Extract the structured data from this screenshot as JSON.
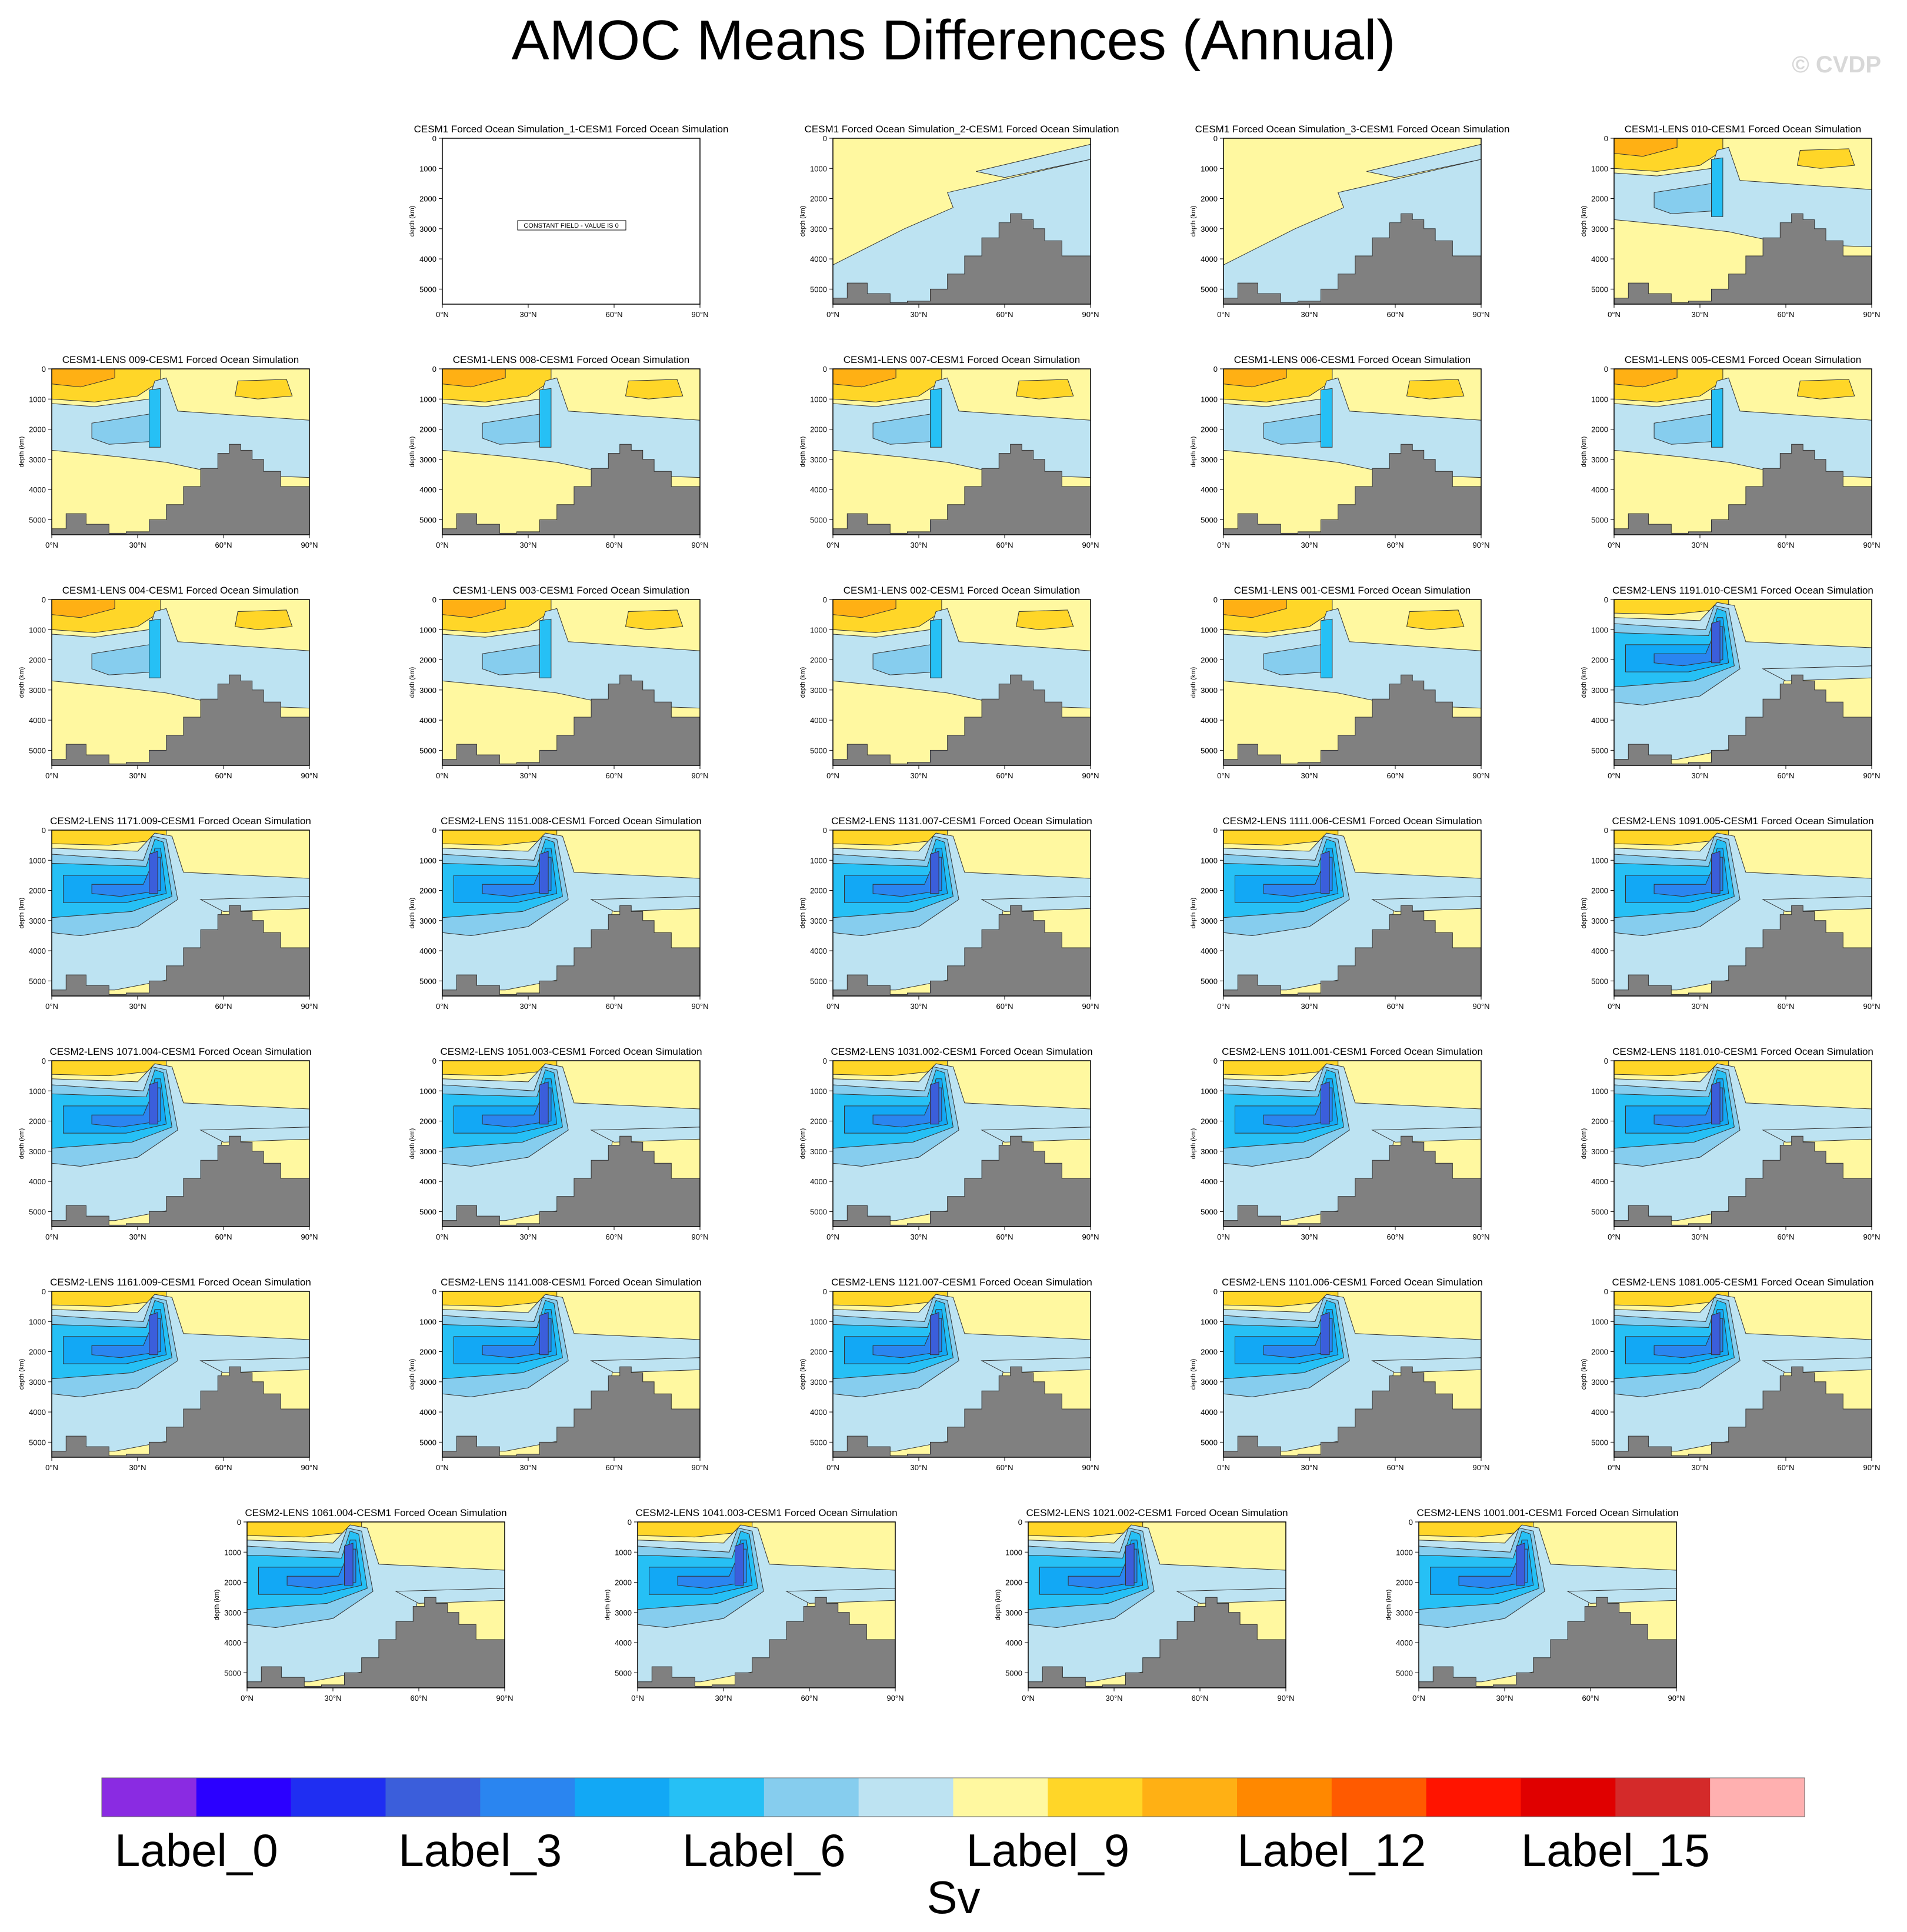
{
  "title": "AMOC Means Differences (Annual)",
  "watermark": "© CVDP",
  "colorbar": {
    "colors": [
      "#8a2be2",
      "#2b00ff",
      "#1f2ef2",
      "#3b5edb",
      "#2a85f0",
      "#12a8f5",
      "#26c0f5",
      "#86cdee",
      "#bde3f2",
      "#fff8a0",
      "#ffd628",
      "#ffb014",
      "#ff8800",
      "#ff5a00",
      "#ff1400",
      "#e00000",
      "#d42a2a",
      "#ffb0b0"
    ],
    "labels": [
      "Label_0",
      "Label_3",
      "Label_6",
      "Label_9",
      "Label_12",
      "Label_15"
    ],
    "label_bins": [
      0,
      3,
      6,
      9,
      12,
      15
    ],
    "unit": "Sv"
  },
  "chart_data": {
    "type": "heatmap",
    "description_of_axes": "Atlantic meridional overturning streamfunction difference, latitude vs depth",
    "xlabel": "",
    "ylabel": "depth (km)",
    "x_ticks": [
      "0°N",
      "30°N",
      "60°N",
      "90°N"
    ],
    "xlim": [
      0,
      90
    ],
    "y_ticks": [
      "0",
      "1000",
      "2000",
      "3000",
      "4000",
      "5000"
    ],
    "ylim": [
      5500,
      0
    ],
    "colorbar_unit": "Sv",
    "panels": [
      {
        "title": "CESM1 Forced Ocean Simulation_1-CESM1 Forced Ocean Simulation",
        "style": "constant",
        "note": "CONSTANT FIELD - VALUE IS 0"
      },
      {
        "title": "CESM1 Forced Ocean Simulation_2-CESM1 Forced Ocean Simulation",
        "style": "forced"
      },
      {
        "title": "CESM1 Forced Ocean Simulation_3-CESM1 Forced Ocean Simulation",
        "style": "forced"
      },
      {
        "title": "CESM1-LENS 010-CESM1 Forced Ocean Simulation",
        "style": "cesm1"
      },
      {
        "title": "CESM1-LENS 009-CESM1 Forced Ocean Simulation",
        "style": "cesm1"
      },
      {
        "title": "CESM1-LENS 008-CESM1 Forced Ocean Simulation",
        "style": "cesm1"
      },
      {
        "title": "CESM1-LENS 007-CESM1 Forced Ocean Simulation",
        "style": "cesm1"
      },
      {
        "title": "CESM1-LENS 006-CESM1 Forced Ocean Simulation",
        "style": "cesm1"
      },
      {
        "title": "CESM1-LENS 005-CESM1 Forced Ocean Simulation",
        "style": "cesm1"
      },
      {
        "title": "CESM1-LENS 004-CESM1 Forced Ocean Simulation",
        "style": "cesm1"
      },
      {
        "title": "CESM1-LENS 003-CESM1 Forced Ocean Simulation",
        "style": "cesm1"
      },
      {
        "title": "CESM1-LENS 002-CESM1 Forced Ocean Simulation",
        "style": "cesm1"
      },
      {
        "title": "CESM1-LENS 001-CESM1 Forced Ocean Simulation",
        "style": "cesm1"
      },
      {
        "title": "CESM2-LENS 1191.010-CESM1 Forced Ocean Simulation",
        "style": "cesm2"
      },
      {
        "title": "CESM2-LENS 1171.009-CESM1 Forced Ocean Simulation",
        "style": "cesm2"
      },
      {
        "title": "CESM2-LENS 1151.008-CESM1 Forced Ocean Simulation",
        "style": "cesm2"
      },
      {
        "title": "CESM2-LENS 1131.007-CESM1 Forced Ocean Simulation",
        "style": "cesm2"
      },
      {
        "title": "CESM2-LENS 1111.006-CESM1 Forced Ocean Simulation",
        "style": "cesm2"
      },
      {
        "title": "CESM2-LENS 1091.005-CESM1 Forced Ocean Simulation",
        "style": "cesm2"
      },
      {
        "title": "CESM2-LENS 1071.004-CESM1 Forced Ocean Simulation",
        "style": "cesm2"
      },
      {
        "title": "CESM2-LENS 1051.003-CESM1 Forced Ocean Simulation",
        "style": "cesm2"
      },
      {
        "title": "CESM2-LENS 1031.002-CESM1 Forced Ocean Simulation",
        "style": "cesm2"
      },
      {
        "title": "CESM2-LENS 1011.001-CESM1 Forced Ocean Simulation",
        "style": "cesm2"
      },
      {
        "title": "CESM2-LENS 1181.010-CESM1 Forced Ocean Simulation",
        "style": "cesm2"
      },
      {
        "title": "CESM2-LENS 1161.009-CESM1 Forced Ocean Simulation",
        "style": "cesm2"
      },
      {
        "title": "CESM2-LENS 1141.008-CESM1 Forced Ocean Simulation",
        "style": "cesm2"
      },
      {
        "title": "CESM2-LENS 1121.007-CESM1 Forced Ocean Simulation",
        "style": "cesm2"
      },
      {
        "title": "CESM2-LENS 1101.006-CESM1 Forced Ocean Simulation",
        "style": "cesm2"
      },
      {
        "title": "CESM2-LENS 1081.005-CESM1 Forced Ocean Simulation",
        "style": "cesm2"
      },
      {
        "title": "CESM2-LENS 1061.004-CESM1 Forced Ocean Simulation",
        "style": "cesm2"
      },
      {
        "title": "CESM2-LENS 1041.003-CESM1 Forced Ocean Simulation",
        "style": "cesm2"
      },
      {
        "title": "CESM2-LENS 1021.002-CESM1 Forced Ocean Simulation",
        "style": "cesm2"
      },
      {
        "title": "CESM2-LENS 1001.001-CESM1 Forced Ocean Simulation",
        "style": "cesm2"
      }
    ]
  }
}
